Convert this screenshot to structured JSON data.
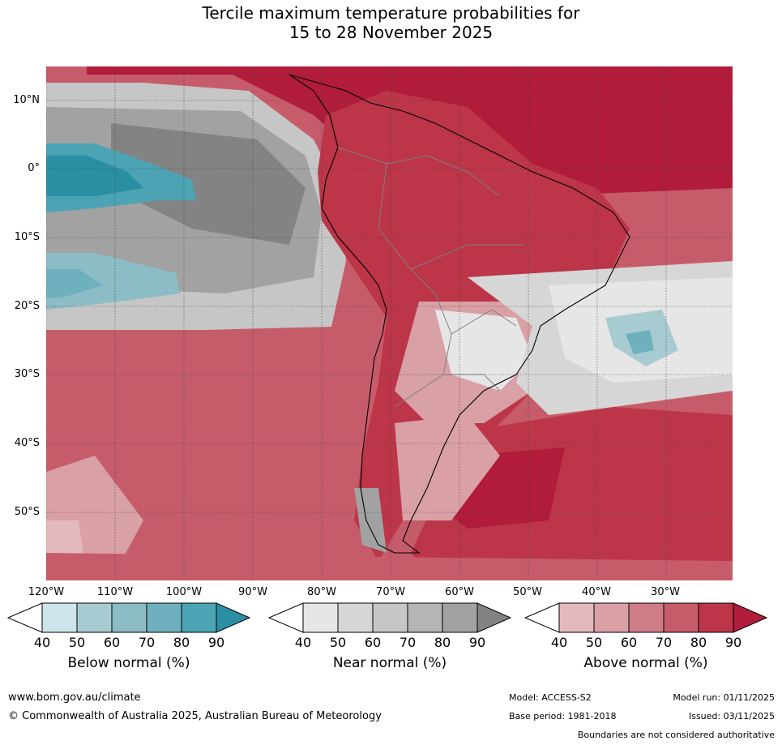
{
  "title": {
    "line1": "Tercile maximum temperature probabilities for",
    "line2": "15 to 28 November 2025"
  },
  "map": {
    "lat_labels": [
      "10°N",
      "0°",
      "10°S",
      "20°S",
      "30°S",
      "40°S",
      "50°S"
    ],
    "lon_labels": [
      "120°W",
      "110°W",
      "100°W",
      "90°W",
      "80°W",
      "70°W",
      "60°W",
      "50°W",
      "40°W",
      "30°W"
    ]
  },
  "legends": [
    {
      "title": "Below normal (%)",
      "ticks": [
        "40",
        "50",
        "60",
        "70",
        "80",
        "90"
      ],
      "colors": [
        "#ffffff",
        "#cde4ea",
        "#a8cbd2",
        "#8cbcc5",
        "#6fb0bf",
        "#4ba3b4",
        "#2a8fa2"
      ]
    },
    {
      "title": "Near normal (%)",
      "ticks": [
        "40",
        "50",
        "60",
        "70",
        "80",
        "90"
      ],
      "colors": [
        "#ffffff",
        "#e6e6e6",
        "#d6d6d6",
        "#c6c6c6",
        "#b5b5b5",
        "#a2a2a2",
        "#838383"
      ]
    },
    {
      "title": "Above normal (%)",
      "ticks": [
        "40",
        "50",
        "60",
        "70",
        "80",
        "90"
      ],
      "colors": [
        "#ffffff",
        "#e4b9bd",
        "#d9a0a6",
        "#cf7c86",
        "#c65c6a",
        "#bc3549",
        "#b01c39"
      ]
    }
  ],
  "footer": {
    "website": "www.bom.gov.au/climate",
    "copyright": "© Commonwealth of Australia 2025, Australian Bureau of Meteorology",
    "model": "Model: ACCESS-S2",
    "model_run": "Model run: 01/11/2025",
    "base_period": "Base period: 1981-2018",
    "issued": "Issued: 03/11/2025",
    "disclaimer": "Boundaries are not considered authoritative"
  }
}
